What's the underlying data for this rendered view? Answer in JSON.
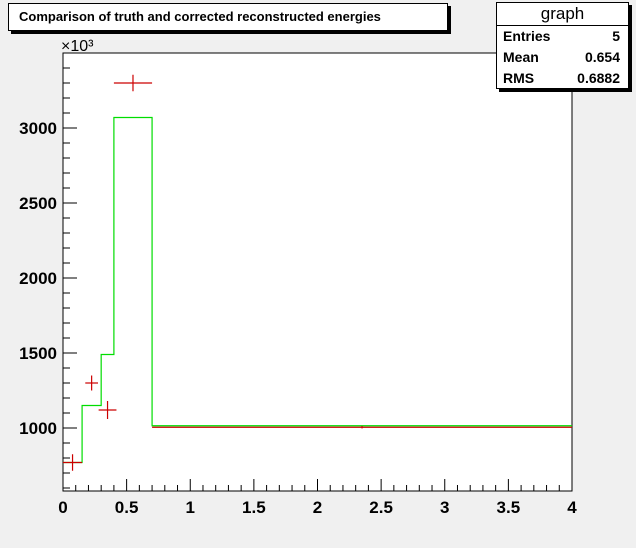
{
  "title": "Comparison of truth and corrected reconstructed energies",
  "stats": {
    "name": "graph",
    "rows": [
      {
        "label": "Entries",
        "value": "5"
      },
      {
        "label": "Mean",
        "value": "0.654"
      },
      {
        "label": "RMS",
        "value": "0.6882"
      }
    ]
  },
  "chart_data": {
    "type": "histogram",
    "title": "Comparison of truth and corrected reconstructed energies",
    "xlim": [
      0,
      4
    ],
    "ylim": [
      580,
      3500
    ],
    "y_multiplier_label": "×10³",
    "x_ticks": [
      {
        "v": 0,
        "label": "0"
      },
      {
        "v": 0.5,
        "label": "0.5"
      },
      {
        "v": 1,
        "label": "1"
      },
      {
        "v": 1.5,
        "label": "1.5"
      },
      {
        "v": 2,
        "label": "2"
      },
      {
        "v": 2.5,
        "label": "2.5"
      },
      {
        "v": 3,
        "label": "3"
      },
      {
        "v": 3.5,
        "label": "3.5"
      },
      {
        "v": 4,
        "label": "4"
      }
    ],
    "y_ticks": [
      {
        "v": 1000,
        "label": "1000"
      },
      {
        "v": 1500,
        "label": "1500"
      },
      {
        "v": 2000,
        "label": "2000"
      },
      {
        "v": 2500,
        "label": "2500"
      },
      {
        "v": 3000,
        "label": "3000"
      }
    ],
    "truth_histogram": {
      "color": "#00dd00",
      "bins": [
        {
          "x0": 0.0,
          "x1": 0.15,
          "y": 770
        },
        {
          "x0": 0.15,
          "x1": 0.3,
          "y": 1150
        },
        {
          "x0": 0.3,
          "x1": 0.4,
          "y": 1490
        },
        {
          "x0": 0.4,
          "x1": 0.7,
          "y": 3070
        },
        {
          "x0": 0.7,
          "x1": 4.0,
          "y": 1015
        }
      ]
    },
    "corrected_points": {
      "color": "#cc0000",
      "points": [
        {
          "x": 0.075,
          "xerr": 0.075,
          "y": 770,
          "yerr": 55
        },
        {
          "x": 0.225,
          "xerr": 0.05,
          "y": 1300,
          "yerr": 50
        },
        {
          "x": 0.35,
          "xerr": 0.07,
          "y": 1120,
          "yerr": 60
        },
        {
          "x": 0.55,
          "xerr": 0.15,
          "y": 3300,
          "yerr": 55
        },
        {
          "x": 2.35,
          "xerr": 1.65,
          "y": 1005,
          "yerr": 8
        }
      ]
    }
  }
}
